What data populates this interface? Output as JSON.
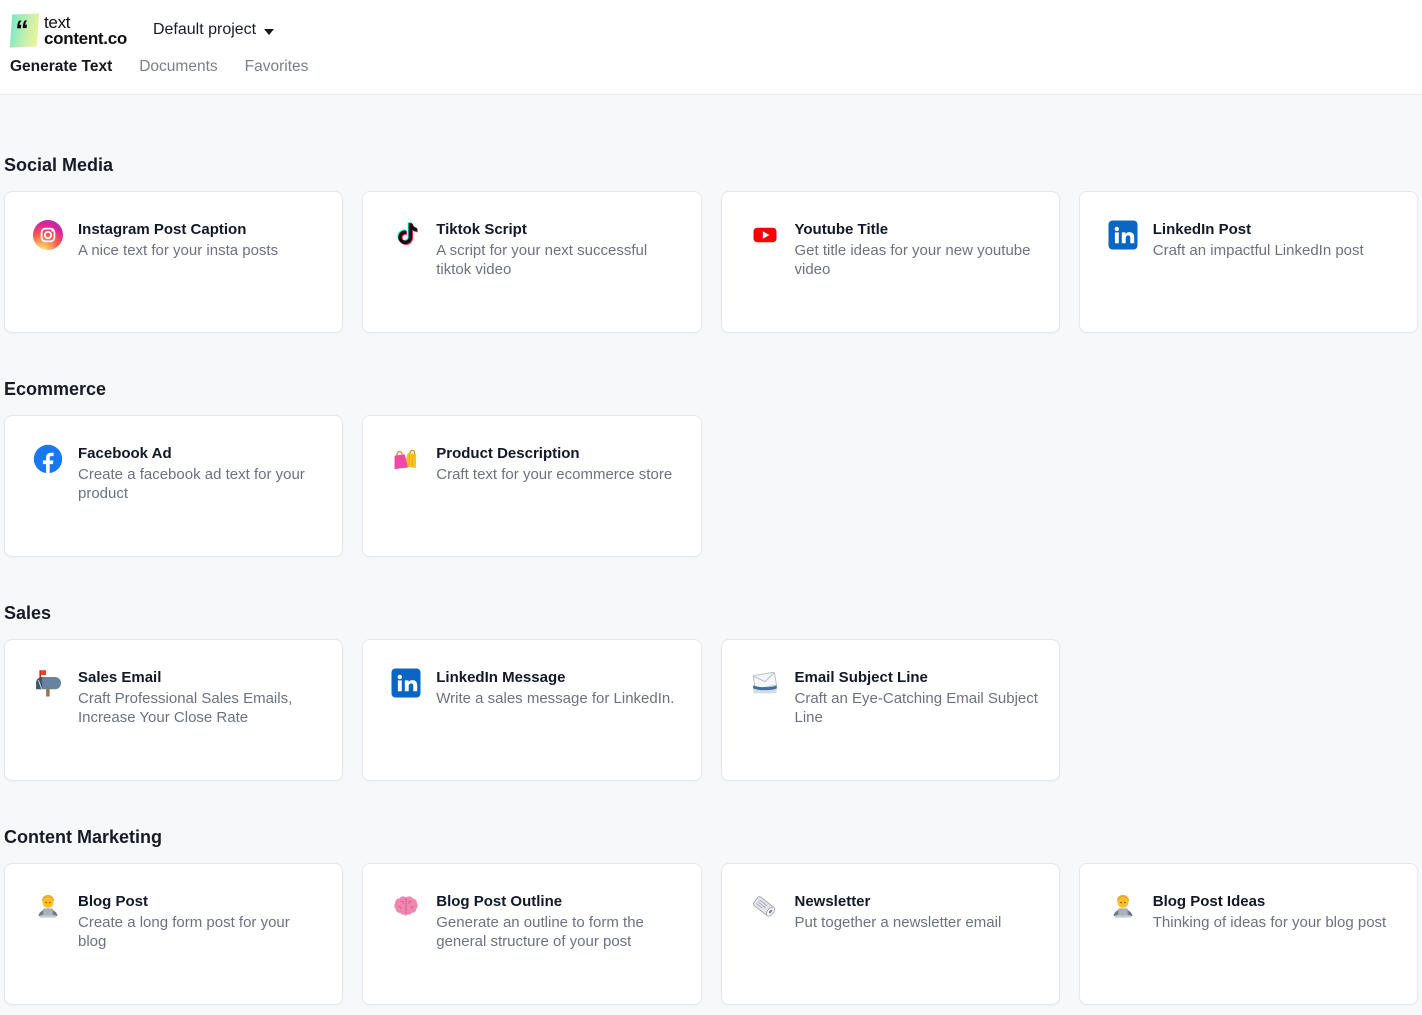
{
  "header": {
    "logo": {
      "quote_glyph": "“",
      "line1": "text",
      "line2": "content.co"
    },
    "project_selector": {
      "label": "Default project"
    },
    "tabs": [
      {
        "label": "Generate Text",
        "active": true
      },
      {
        "label": "Documents",
        "active": false
      },
      {
        "label": "Favorites",
        "active": false
      }
    ]
  },
  "sections": [
    {
      "title": "Social Media",
      "cards": [
        {
          "icon": "instagram-icon",
          "title": "Instagram Post Caption",
          "description": "A nice text for your insta posts"
        },
        {
          "icon": "tiktok-icon",
          "title": "Tiktok Script",
          "description": "A script for your next successful tiktok video"
        },
        {
          "icon": "youtube-icon",
          "title": "Youtube Title",
          "description": "Get title ideas for your new youtube video"
        },
        {
          "icon": "linkedin-icon",
          "title": "LinkedIn Post",
          "description": "Craft an impactful LinkedIn post"
        }
      ]
    },
    {
      "title": "Ecommerce",
      "cards": [
        {
          "icon": "facebook-icon",
          "title": "Facebook Ad",
          "description": "Create a facebook ad text for your product"
        },
        {
          "icon": "shopping-bags-icon",
          "title": "Product Description",
          "description": "Craft text for your ecommerce store"
        }
      ]
    },
    {
      "title": "Sales",
      "cards": [
        {
          "icon": "mailbox-icon",
          "title": "Sales Email",
          "description": "Craft Professional Sales Emails, Increase Your Close Rate"
        },
        {
          "icon": "linkedin-icon",
          "title": "LinkedIn Message",
          "description": "Write a sales message for LinkedIn."
        },
        {
          "icon": "incoming-envelope-icon",
          "title": "Email Subject Line",
          "description": "Craft an Eye-Catching Email Subject Line"
        }
      ]
    },
    {
      "title": "Content Marketing",
      "cards": [
        {
          "icon": "technologist-icon",
          "title": "Blog Post",
          "description": "Create a long form post for your blog"
        },
        {
          "icon": "brain-icon",
          "title": "Blog Post Outline",
          "description": "Generate an outline to form the general structure of your post"
        },
        {
          "icon": "newspaper-icon",
          "title": "Newsletter",
          "description": "Put together a newsletter email"
        },
        {
          "icon": "technologist-icon",
          "title": "Blog Post Ideas",
          "description": "Thinking of ideas for your blog post"
        }
      ]
    }
  ],
  "colors": {
    "page_background": "#f7f8fa",
    "header_background": "#ffffff",
    "card_background": "#ffffff",
    "card_border": "#e4e7ec",
    "title_text": "#111827",
    "description_text": "#6b7280",
    "active_tab_text": "#16181d",
    "inactive_tab_text": "#7a8088",
    "logo_gradient_start": "#7de9c6",
    "logo_gradient_end": "#e9f598",
    "linkedin_blue": "#0a66c2",
    "facebook_blue": "#1877f2",
    "youtube_red": "#ff0000",
    "tiktok_cyan": "#25f4ee",
    "tiktok_pink": "#fe2c55"
  }
}
